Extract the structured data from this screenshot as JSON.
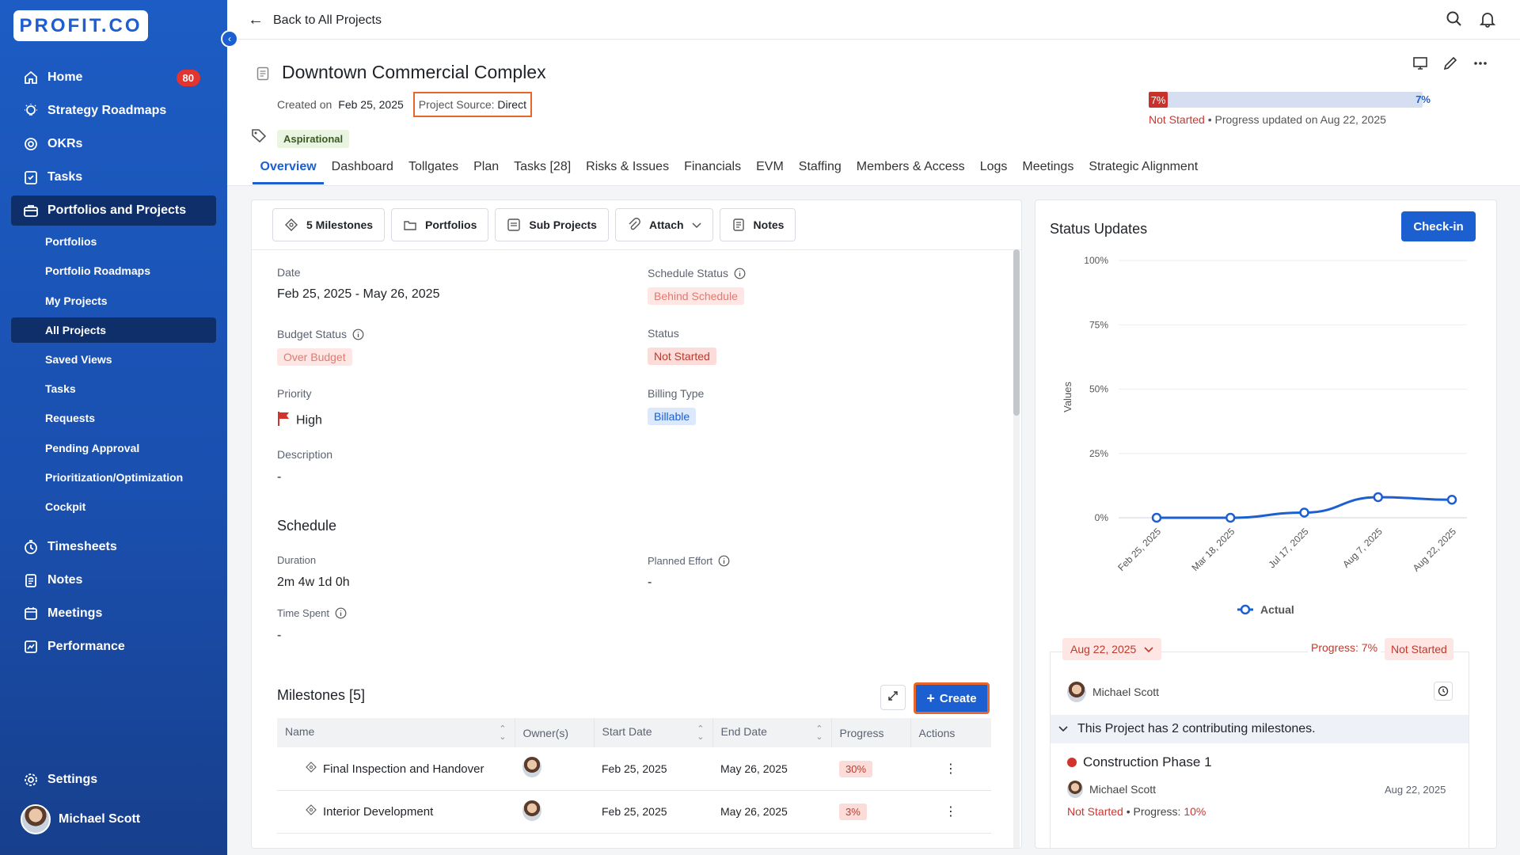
{
  "sidebar": {
    "logo": "PROFIT.CO",
    "nav": [
      {
        "label": "Home",
        "badge": "80"
      },
      {
        "label": "Strategy Roadmaps"
      },
      {
        "label": "OKRs"
      },
      {
        "label": "Tasks"
      },
      {
        "label": "Portfolios and Projects"
      }
    ],
    "sub": [
      "Portfolios",
      "Portfolio Roadmaps",
      "My Projects",
      "All Projects",
      "Saved Views",
      "Tasks",
      "Requests",
      "Pending Approval",
      "Prioritization/Optimization",
      "Cockpit"
    ],
    "nav2": [
      "Timesheets",
      "Notes",
      "Meetings",
      "Performance"
    ],
    "settings": "Settings",
    "user": "Michael Scott"
  },
  "topbar": {
    "back": "Back to All Projects"
  },
  "header": {
    "title": "Downtown Commercial Complex",
    "created_label": "Created on",
    "created_date": "Feb 25, 2025",
    "source_label": "Project Source:",
    "source_value": "Direct",
    "tag": "Aspirational",
    "progress": {
      "value_label": "7%",
      "fill_fraction": 0.07,
      "pct": "7%",
      "status": "Not Started",
      "note": "Progress updated on Aug 22, 2025"
    },
    "tabs": [
      "Overview",
      "Dashboard",
      "Tollgates",
      "Plan",
      "Tasks [28]",
      "Risks & Issues",
      "Financials",
      "EVM",
      "Staffing",
      "Members & Access",
      "Logs",
      "Meetings",
      "Strategic Alignment"
    ]
  },
  "toolbar": {
    "milestones": "5 Milestones",
    "portfolios": "Portfolios",
    "subprojects": "Sub Projects",
    "attach": "Attach",
    "notes": "Notes"
  },
  "overview": {
    "date_label": "Date",
    "date_value": "Feb 25, 2025 - May 26, 2025",
    "schedule_status_label": "Schedule Status",
    "schedule_status": "Behind Schedule",
    "budget_status_label": "Budget Status",
    "budget_status": "Over Budget",
    "status_label": "Status",
    "status": "Not Started",
    "priority_label": "Priority",
    "priority": "High",
    "billing_label": "Billing Type",
    "billing": "Billable",
    "description_label": "Description",
    "description": "-",
    "schedule_heading": "Schedule",
    "duration_label": "Duration",
    "duration": "2m 4w 1d 0h",
    "planned_label": "Planned Effort",
    "planned": "-",
    "timespent_label": "Time Spent",
    "timespent": "-"
  },
  "milestones": {
    "heading": "Milestones [5]",
    "create": "Create",
    "columns": [
      "Name",
      "Owner(s)",
      "Start Date",
      "End Date",
      "Progress",
      "Actions"
    ],
    "rows": [
      {
        "name": "Final Inspection and Handover",
        "start": "Feb 25, 2025",
        "end": "May 26, 2025",
        "progress": "30%"
      },
      {
        "name": "Interior Development",
        "start": "Feb 25, 2025",
        "end": "May 26, 2025",
        "progress": "3%"
      }
    ]
  },
  "status_updates": {
    "title": "Status Updates",
    "checkin": "Check-in",
    "chart_data": {
      "type": "line",
      "ylabel": "Values",
      "y_ticks": [
        "100%",
        "75%",
        "50%",
        "25%",
        "0%"
      ],
      "ylim": [
        0,
        100
      ],
      "categories": [
        "Feb 25, 2025",
        "Mar 18, 2025",
        "Jul 17, 2025",
        "Aug 7, 2025",
        "Aug 22, 2025"
      ],
      "series": [
        {
          "name": "Actual",
          "values": [
            0,
            0,
            2,
            8,
            7
          ]
        }
      ],
      "color": "#1b5fd0",
      "legend_position": "bottom"
    },
    "update": {
      "date": "Aug 22, 2025",
      "progress": "Progress: 7%",
      "status": "Not Started",
      "user": "Michael Scott",
      "contrib": "This Project has 2 contributing milestones.",
      "milestone": "Construction Phase 1",
      "milestone_user": "Michael Scott",
      "milestone_date": "Aug 22, 2025",
      "milestone_status": "Not Started",
      "milestone_progress_label": "Progress:",
      "milestone_progress": "10%"
    }
  }
}
